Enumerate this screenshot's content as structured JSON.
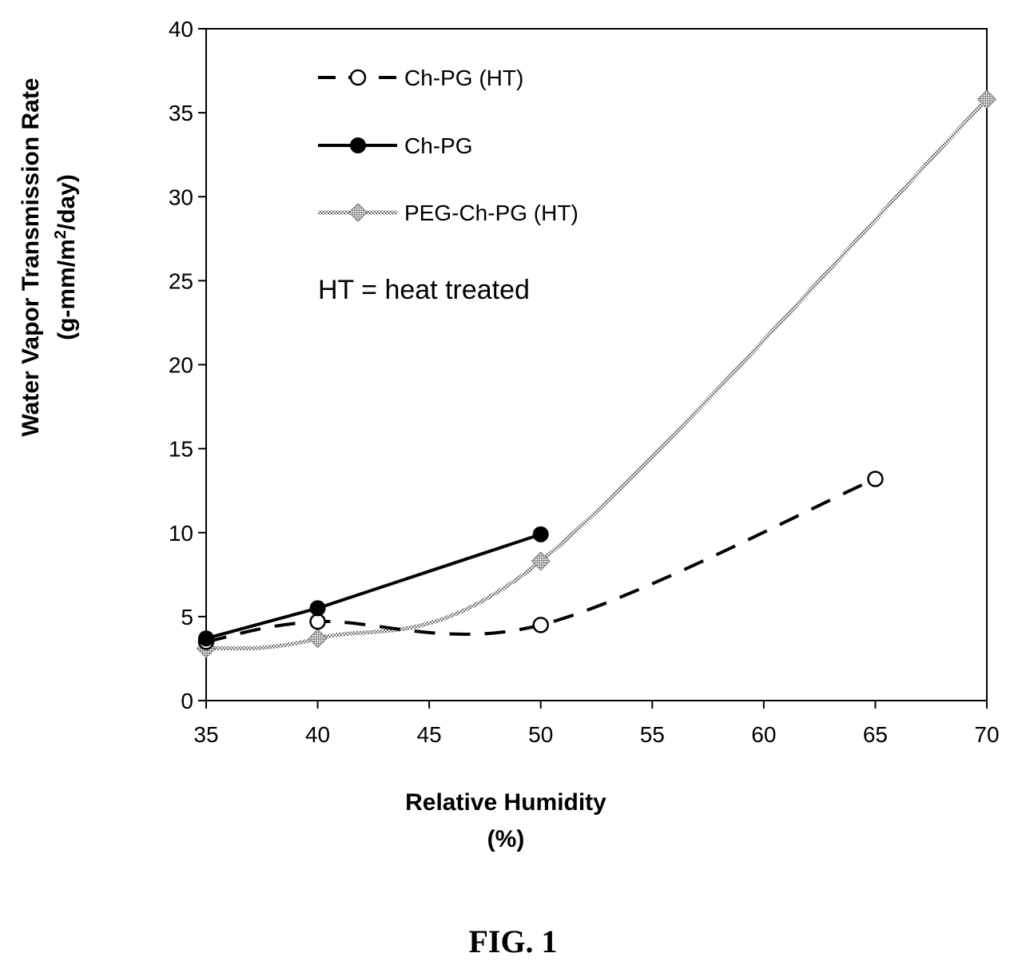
{
  "chart_data": {
    "type": "line",
    "title": "",
    "xlabel_line1": "Relative Humidity",
    "xlabel_line2": "(%)",
    "ylabel_line1": "Water Vapor Transmission Rate",
    "ylabel_line2_pre": "(g-mm/m",
    "ylabel_line2_sup": "2",
    "ylabel_line2_post": "/day)",
    "xlim": [
      35,
      70
    ],
    "ylim": [
      0,
      40
    ],
    "xticks": [
      35,
      40,
      45,
      50,
      55,
      60,
      65,
      70
    ],
    "yticks": [
      0,
      5,
      10,
      15,
      20,
      25,
      30,
      35,
      40
    ],
    "grid": false,
    "legend_position": "top-left",
    "series": [
      {
        "name": "Ch-PG (HT)",
        "style": "dashed",
        "marker": "open-circle",
        "color": "#000000",
        "x": [
          35,
          40,
          50,
          65
        ],
        "y": [
          3.5,
          4.7,
          4.5,
          13.2
        ]
      },
      {
        "name": "Ch-PG",
        "style": "solid",
        "marker": "filled-circle",
        "color": "#000000",
        "x": [
          35,
          40,
          50
        ],
        "y": [
          3.7,
          5.5,
          9.9
        ]
      },
      {
        "name": "PEG-Ch-PG (HT)",
        "style": "hatched",
        "marker": "hatched-diamond",
        "color": "#777777",
        "x": [
          35,
          40,
          50,
          70
        ],
        "y": [
          3.1,
          3.7,
          8.3,
          35.8
        ]
      }
    ],
    "annotation": "HT = heat treated"
  },
  "figure_caption": "FIG. 1"
}
